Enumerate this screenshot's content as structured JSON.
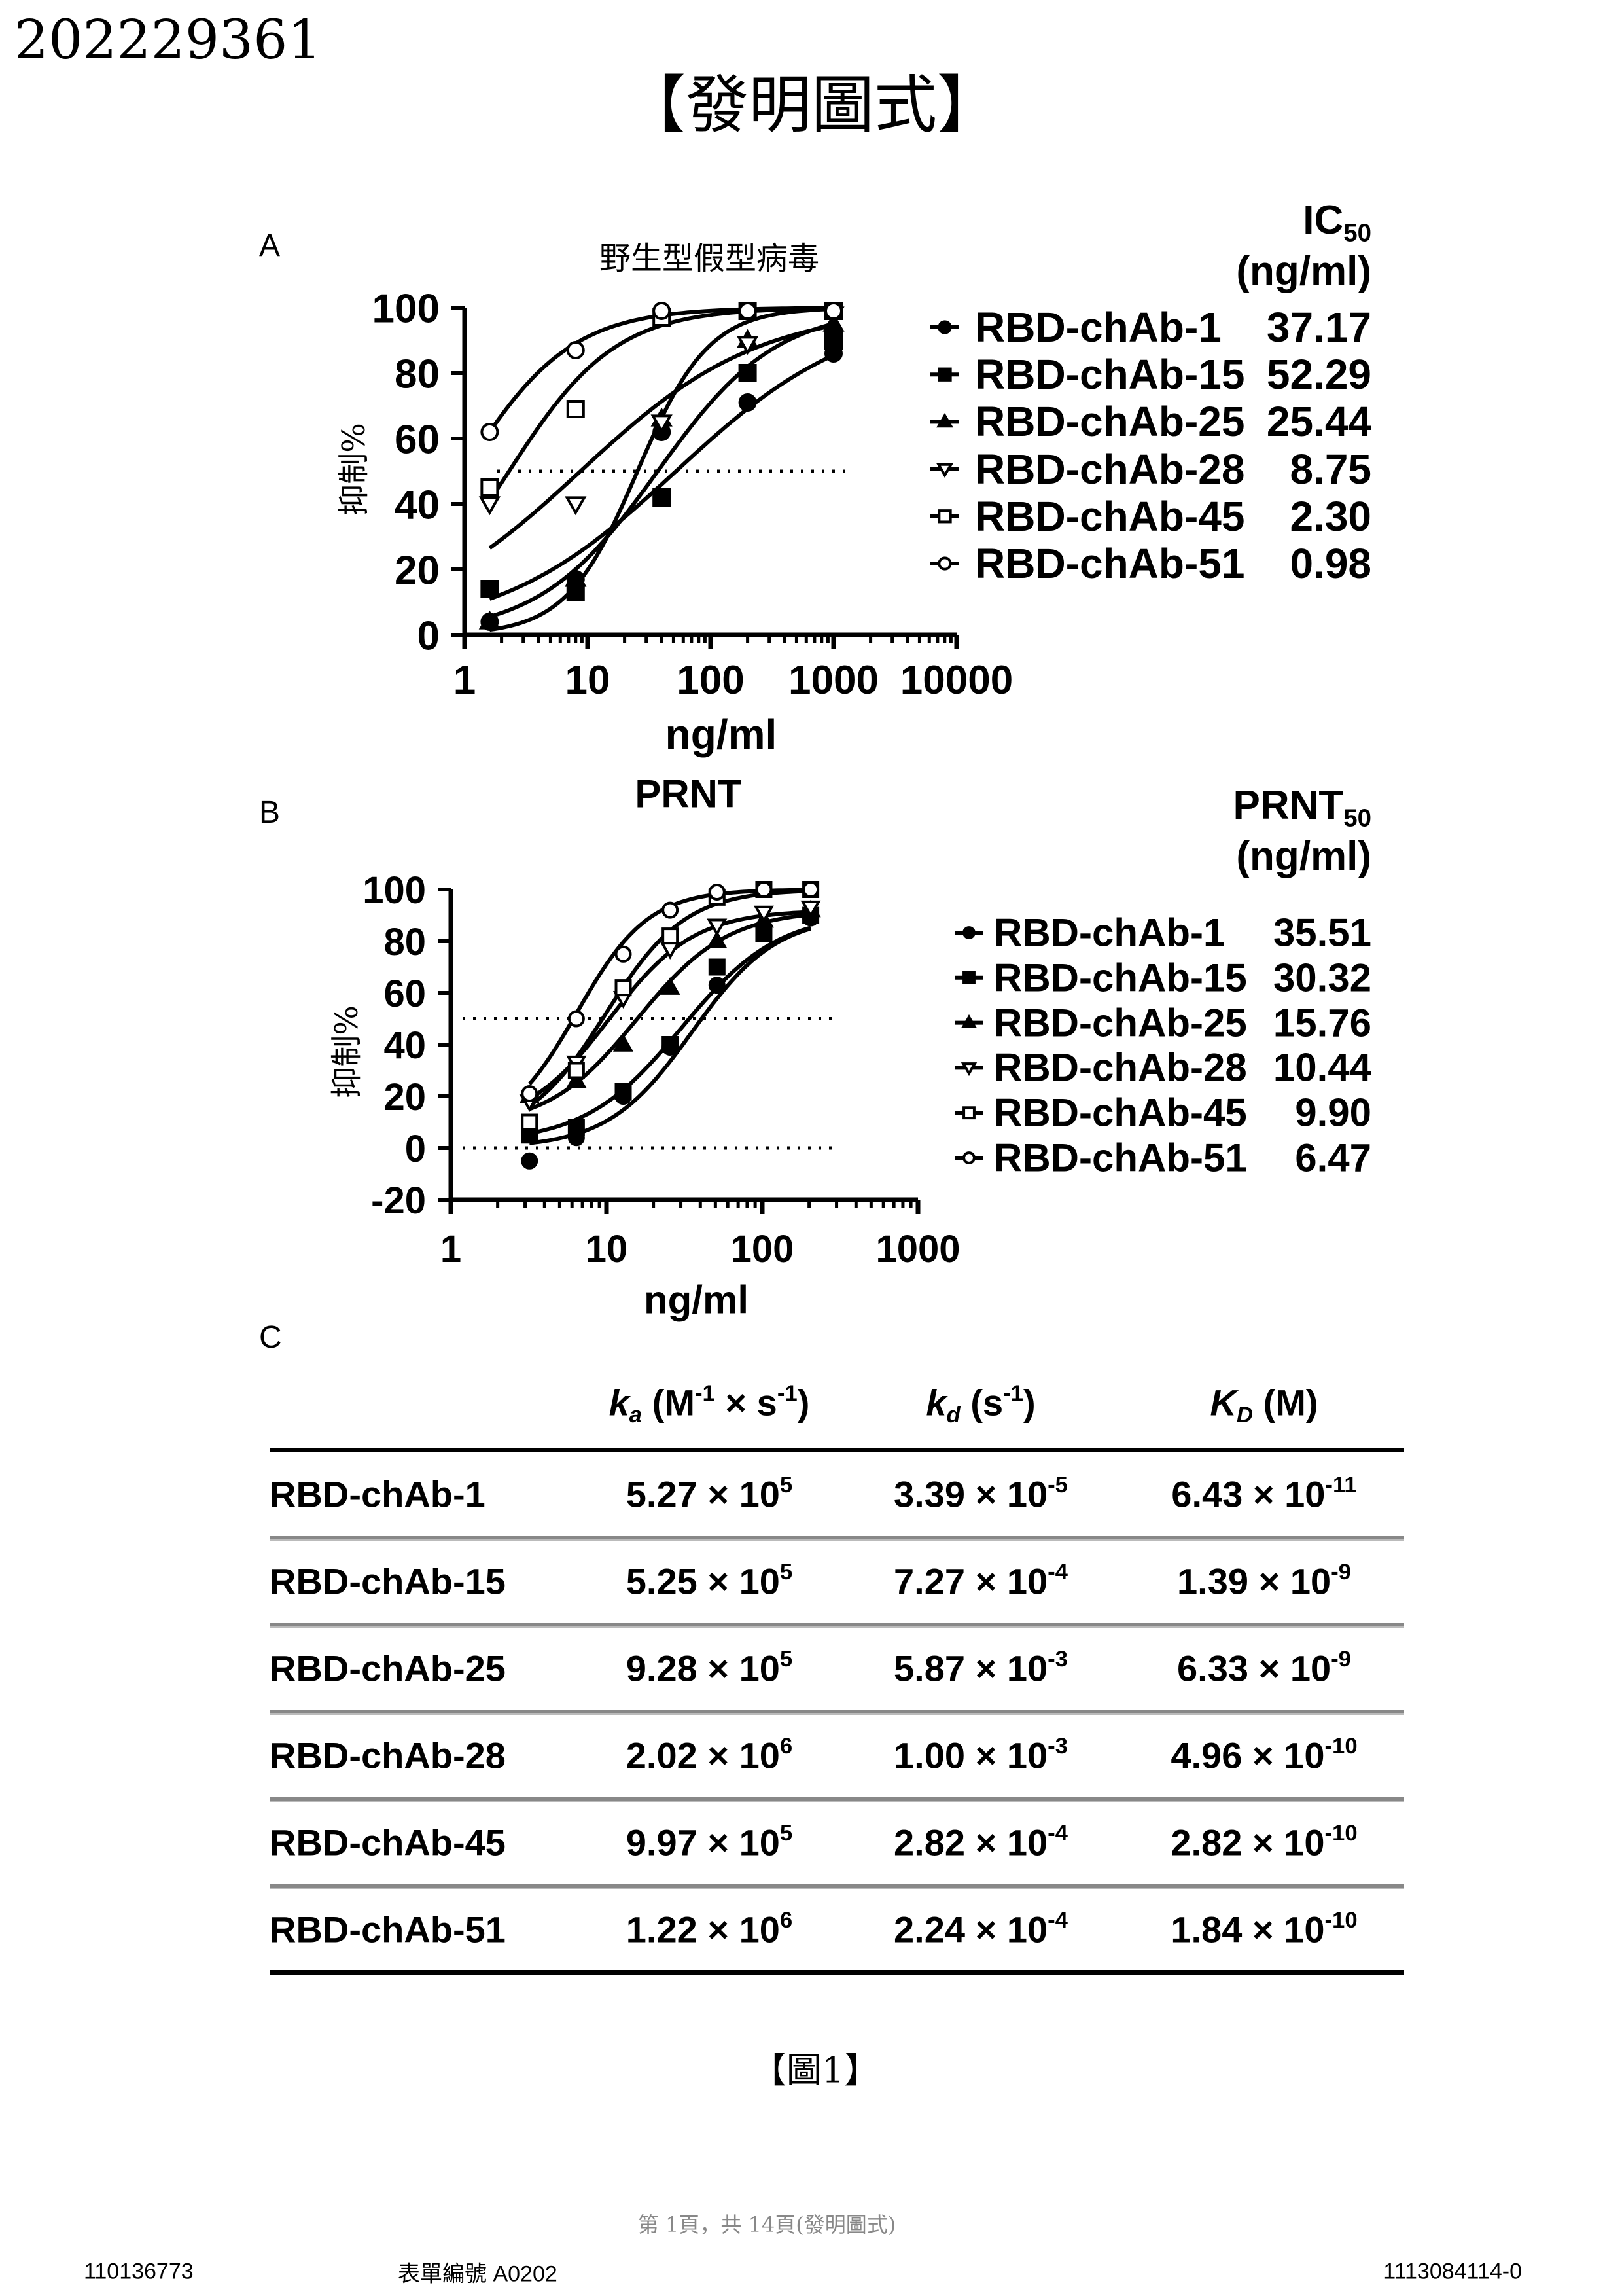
{
  "doc_number": "202229361",
  "page_title": "【發明圖式】",
  "panels": {
    "a_label": "A",
    "b_label": "B",
    "c_label": "C"
  },
  "chart_data": [
    {
      "type": "line",
      "panel": "A",
      "title": "野生型假型病毒",
      "xlabel": "ng/ml",
      "ylabel": "抑制%",
      "xscale": "log",
      "xlim": [
        1,
        10000
      ],
      "ylim": [
        0,
        100
      ],
      "xticks": [
        "1",
        "10",
        "100",
        "1000",
        "10000"
      ],
      "yticks": [
        "0",
        "20",
        "40",
        "60",
        "80",
        "100"
      ],
      "reference_line": 50,
      "legend_header": {
        "main": "IC",
        "sub": "50",
        "unit": "(ng/ml)"
      },
      "x": [
        1.6,
        8,
        40,
        200,
        1000
      ],
      "series": [
        {
          "name": "RBD-chAb-1",
          "ic50": "37.17",
          "marker": "filled-circle",
          "values": [
            4,
            17,
            62,
            71,
            86
          ]
        },
        {
          "name": "RBD-chAb-15",
          "ic50": "52.29",
          "marker": "filled-square",
          "values": [
            14,
            13,
            42,
            80,
            90
          ]
        },
        {
          "name": "RBD-chAb-25",
          "ic50": "25.44",
          "marker": "filled-triangle",
          "values": [
            4,
            17,
            66,
            90,
            95
          ]
        },
        {
          "name": "RBD-chAb-28",
          "ic50": "8.75",
          "marker": "open-triangle-down",
          "values": [
            40,
            40,
            65,
            89,
            98
          ]
        },
        {
          "name": "RBD-chAb-45",
          "ic50": "2.30",
          "marker": "open-square",
          "values": [
            45,
            69,
            97,
            99,
            99
          ]
        },
        {
          "name": "RBD-chAb-51",
          "ic50": "0.98",
          "marker": "open-circle",
          "values": [
            62,
            87,
            99,
            99,
            99
          ]
        }
      ]
    },
    {
      "type": "line",
      "panel": "B",
      "title": "PRNT",
      "xlabel": "ng/ml",
      "ylabel": "抑制%",
      "xscale": "log",
      "xlim": [
        1,
        1000
      ],
      "ylim": [
        -20,
        100
      ],
      "xticks": [
        "1",
        "10",
        "100",
        "1000"
      ],
      "yticks": [
        "-20",
        "0",
        "20",
        "40",
        "60",
        "80",
        "100"
      ],
      "reference_lines": [
        50,
        0
      ],
      "legend_header": {
        "main": "PRNT",
        "sub": "50",
        "unit": "(ng/ml)"
      },
      "x": [
        3.2,
        6.4,
        12.8,
        25.6,
        51.2,
        102.4,
        204.8
      ],
      "series": [
        {
          "name": "RBD-chAb-1",
          "ic50": "35.51",
          "marker": "filled-circle",
          "values": [
            -5,
            4,
            20,
            39,
            63,
            85,
            89
          ]
        },
        {
          "name": "RBD-chAb-15",
          "ic50": "30.32",
          "marker": "filled-square",
          "values": [
            5,
            8,
            22,
            40,
            70,
            83,
            90
          ]
        },
        {
          "name": "RBD-chAb-25",
          "ic50": "15.76",
          "marker": "filled-triangle",
          "values": [
            20,
            26,
            40,
            62,
            80,
            88,
            92
          ]
        },
        {
          "name": "RBD-chAb-28",
          "ic50": "10.44",
          "marker": "open-triangle-down",
          "values": [
            18,
            33,
            58,
            77,
            86,
            91,
            93
          ]
        },
        {
          "name": "RBD-chAb-45",
          "ic50": "9.90",
          "marker": "open-square",
          "values": [
            10,
            30,
            62,
            82,
            97,
            100,
            100
          ]
        },
        {
          "name": "RBD-chAb-51",
          "ic50": "6.47",
          "marker": "open-circle",
          "values": [
            21,
            50,
            75,
            92,
            99,
            100,
            100
          ]
        }
      ]
    }
  ],
  "table": {
    "headers": [
      {
        "sym": "k",
        "sub": "a",
        "unit_pre": " (M",
        "sup1": "-1",
        "mid": " × s",
        "sup2": "-1",
        "unit_post": ")"
      },
      {
        "sym": "k",
        "sub": "d",
        "unit_pre": " (s",
        "sup1": "-1",
        "unit_post": ")"
      },
      {
        "sym": "K",
        "sub": "D",
        "unit_pre": " (M)"
      }
    ],
    "rows": [
      {
        "name": "RBD-chAb-1",
        "ka": [
          "5.27",
          "5"
        ],
        "kd": [
          "3.39",
          "-5"
        ],
        "KD": [
          "6.43",
          "-11"
        ]
      },
      {
        "name": "RBD-chAb-15",
        "ka": [
          "5.25",
          "5"
        ],
        "kd": [
          "7.27",
          "-4"
        ],
        "KD": [
          "1.39",
          "-9"
        ]
      },
      {
        "name": "RBD-chAb-25",
        "ka": [
          "9.28",
          "5"
        ],
        "kd": [
          "5.87",
          "-3"
        ],
        "KD": [
          "6.33",
          "-9"
        ]
      },
      {
        "name": "RBD-chAb-28",
        "ka": [
          "2.02",
          "6"
        ],
        "kd": [
          "1.00",
          "-3"
        ],
        "KD": [
          "4.96",
          "-10"
        ]
      },
      {
        "name": "RBD-chAb-45",
        "ka": [
          "9.97",
          "5"
        ],
        "kd": [
          "2.82",
          "-4"
        ],
        "KD": [
          "2.82",
          "-10"
        ]
      },
      {
        "name": "RBD-chAb-51",
        "ka": [
          "1.22",
          "6"
        ],
        "kd": [
          "2.24",
          "-4"
        ],
        "KD": [
          "1.84",
          "-10"
        ]
      }
    ],
    "times": "×",
    "base": "10"
  },
  "figure_caption": "【圖1】",
  "footer": {
    "page_info": "第 1頁，共 14頁(發明圖式)",
    "left_id": "110136773",
    "form_number": "表單編號 A0202",
    "right_id": "1113084114-0"
  }
}
